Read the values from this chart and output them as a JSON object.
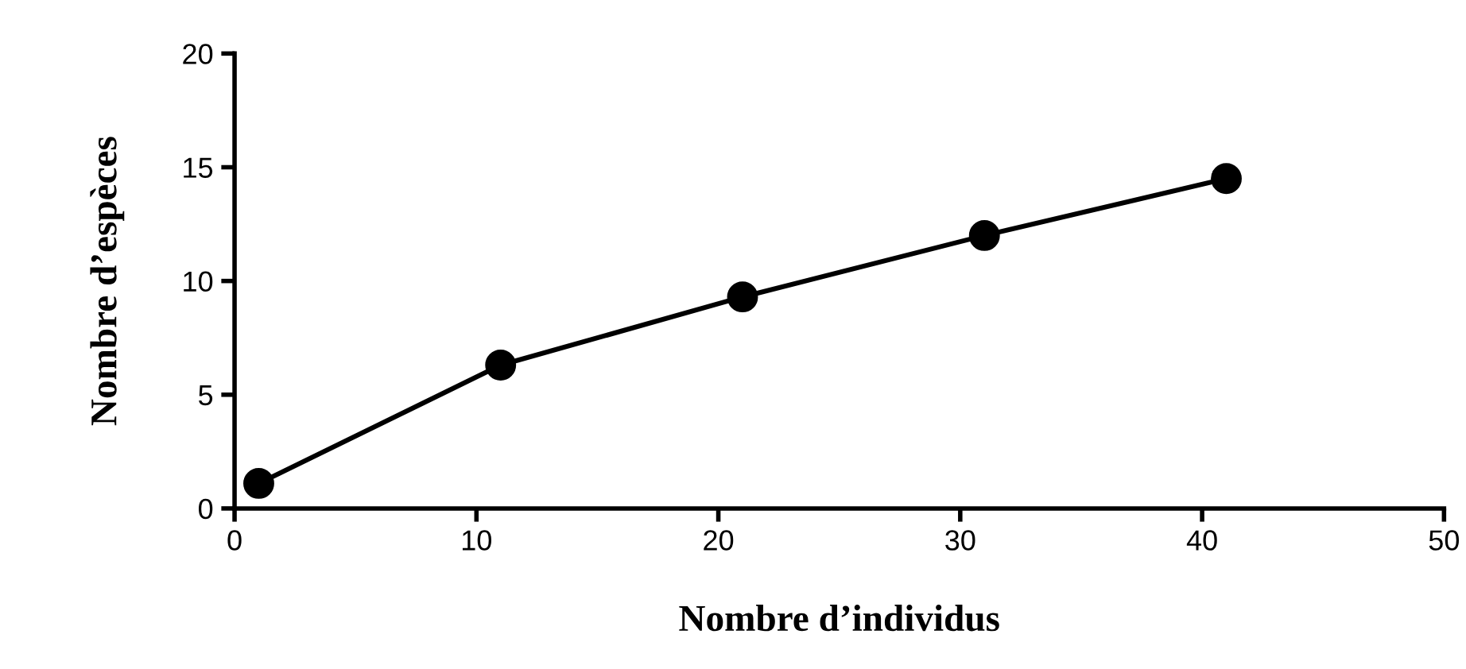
{
  "chart_data": {
    "type": "line",
    "xlabel": "Nombre d’individus",
    "ylabel": "Nombre d’espèces",
    "x": [
      1,
      11,
      21,
      31,
      41
    ],
    "series": [
      {
        "color": "#000000",
        "values": [
          1.1,
          6.3,
          9.3,
          12.0,
          14.5
        ]
      }
    ],
    "xlim": [
      0,
      50
    ],
    "xticks": [
      0,
      10,
      20,
      30,
      40,
      50
    ],
    "ylim": [
      0,
      20
    ],
    "yticks": [
      0,
      5,
      10,
      15,
      20
    ],
    "marker": "circle",
    "line_style": "solid",
    "grid": false,
    "legend": false
  }
}
